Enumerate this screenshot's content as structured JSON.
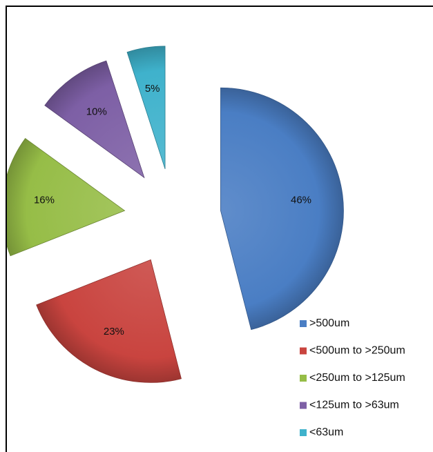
{
  "chart_data": {
    "type": "pie",
    "exploded": true,
    "title": "",
    "legend_position": "bottom-right",
    "categories": [
      ">500um",
      "<500um to >250um",
      "<250um to >125um",
      "<125um to >63um",
      "<63um"
    ],
    "values": [
      46,
      23,
      16,
      10,
      5
    ],
    "data_labels": [
      "46%",
      "23%",
      "16%",
      "10%",
      "5%"
    ],
    "colors": [
      "#4a7ec4",
      "#c9443f",
      "#96bd47",
      "#7d5fa5",
      "#3fb2cc"
    ]
  }
}
